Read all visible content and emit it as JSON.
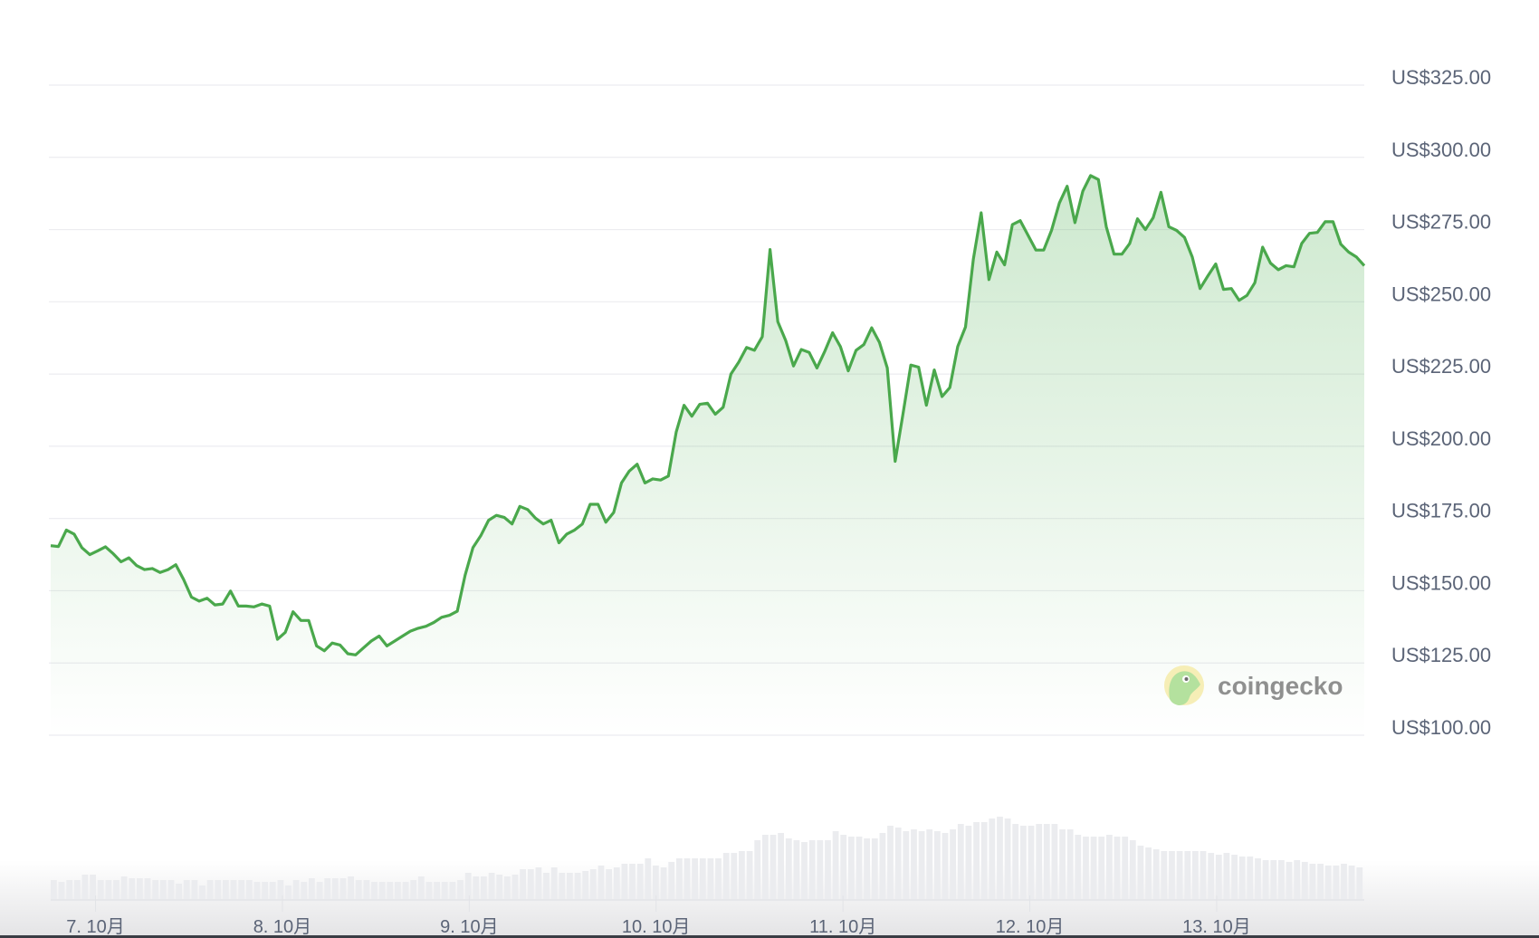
{
  "chart_data": {
    "type": "line",
    "title": "",
    "xlabel": "",
    "ylabel": "",
    "x_tick_labels": [
      "7. 10月",
      "8. 10月",
      "9. 10月",
      "10. 10月",
      "11. 10月",
      "12. 10月",
      "13. 10月"
    ],
    "y_tick_labels": [
      "US$325.00",
      "US$300.00",
      "US$275.00",
      "US$250.00",
      "US$225.00",
      "US$200.00",
      "US$175.00",
      "US$150.00",
      "US$125.00",
      "US$100.00"
    ],
    "y_ticks": [
      325,
      300,
      275,
      250,
      225,
      200,
      175,
      150,
      125,
      100
    ],
    "ylim": [
      100,
      325
    ],
    "x_range_days": [
      6.76,
      13.79
    ],
    "grid": true,
    "area_fill": true,
    "line_color": "#4aa84c",
    "price_usd": [
      165.6,
      165.3,
      171,
      169.6,
      164.9,
      162.5,
      163.8,
      165.2,
      162.8,
      160,
      161.4,
      158.7,
      157.3,
      157.7,
      156.3,
      157.3,
      159,
      153.9,
      147.8,
      146.4,
      147.4,
      145.1,
      145.4,
      149.9,
      144.7,
      144.7,
      144.4,
      145.4,
      144.7,
      133.2,
      135.6,
      142.7,
      139.7,
      139.7,
      130.9,
      129.2,
      131.9,
      131.2,
      128.2,
      127.8,
      130.2,
      132.6,
      134.3,
      130.9,
      132.6,
      134.3,
      136,
      137,
      137.7,
      139,
      140.8,
      141.5,
      142.9,
      155.4,
      164.9,
      169,
      174.4,
      176.1,
      175.4,
      173.1,
      179.2,
      178.1,
      175.1,
      173.1,
      174.4,
      166.6,
      169.6,
      171,
      173.1,
      179.9,
      179.9,
      173.7,
      177.1,
      187.3,
      191.4,
      193.8,
      187.3,
      188.7,
      188.3,
      189.7,
      205,
      214.2,
      210.4,
      214.5,
      214.9,
      211.1,
      213.5,
      225,
      229.1,
      234.2,
      233.2,
      237.9,
      268.1,
      243.1,
      236.6,
      227.8,
      233.5,
      232.5,
      227.1,
      232.9,
      239.3,
      234.5,
      226.1,
      233.2,
      235.2,
      241,
      235.9,
      227.1,
      194.8,
      211.1,
      228.1,
      227.4,
      214.2,
      226.4,
      217.2,
      220.3,
      234.5,
      241.3,
      264.8,
      280.8,
      257.7,
      267.2,
      262.8,
      276.7,
      278.1,
      273,
      267.9,
      267.9,
      274.7,
      284.2,
      290,
      277.4,
      288.3,
      293.7,
      292.3,
      276,
      266.5,
      266.5,
      270.2,
      278.7,
      275,
      279.1,
      287.9,
      276,
      274.7,
      272.3,
      265.5,
      254.6,
      259,
      263.1,
      254.3,
      254.6,
      250.5,
      252.2,
      256.6,
      268.9,
      263.4,
      261.1,
      262.5,
      262.1,
      270.2,
      273.7,
      274,
      277.7,
      277.7,
      269.9,
      267.2,
      265.5,
      262.5
    ],
    "volume_relative": [
      63,
      57,
      63,
      63,
      81,
      81,
      63,
      63,
      63,
      75,
      69,
      69,
      69,
      63,
      63,
      63,
      51,
      63,
      63,
      45,
      63,
      63,
      63,
      63,
      63,
      63,
      57,
      57,
      57,
      63,
      45,
      63,
      57,
      69,
      57,
      69,
      69,
      69,
      75,
      63,
      63,
      57,
      57,
      57,
      57,
      57,
      63,
      75,
      57,
      57,
      57,
      57,
      63,
      87,
      75,
      75,
      87,
      81,
      75,
      81,
      99,
      99,
      105,
      87,
      105,
      87,
      87,
      87,
      93,
      99,
      111,
      99,
      105,
      117,
      117,
      117,
      135,
      111,
      105,
      123,
      135,
      135,
      135,
      135,
      135,
      135,
      153,
      153,
      159,
      159,
      195,
      213,
      213,
      219,
      201,
      195,
      189,
      195,
      195,
      195,
      225,
      213,
      207,
      207,
      201,
      201,
      219,
      243,
      237,
      225,
      231,
      225,
      231,
      225,
      219,
      231,
      249,
      243,
      255,
      255,
      267,
      273,
      267,
      249,
      243,
      243,
      249,
      249,
      249,
      231,
      231,
      213,
      207,
      207,
      207,
      213,
      207,
      207,
      195,
      177,
      171,
      165,
      159,
      159,
      159,
      159,
      159,
      159,
      153,
      147,
      153,
      147,
      141,
      141,
      135,
      129,
      129,
      129,
      123,
      129,
      123,
      117,
      117,
      111,
      111,
      117,
      111,
      105
    ]
  },
  "watermark": {
    "text": "coingecko",
    "icon": "coingecko-gecko-logo"
  }
}
